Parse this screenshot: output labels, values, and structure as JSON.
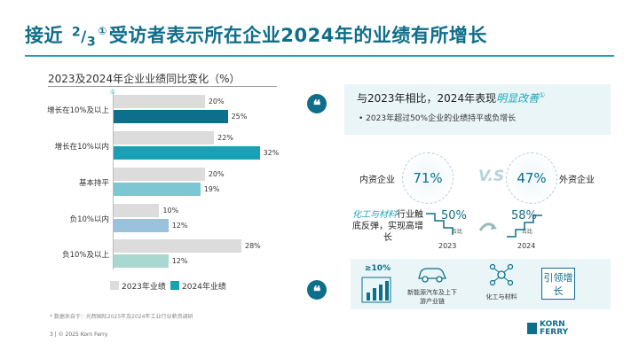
{
  "title": {
    "pre": "接近 ",
    "frac_num": "2",
    "frac_sep": "/",
    "frac_den": "3",
    "note": "①",
    "post": "受访者表示所在企业2024年的业绩有所增长"
  },
  "chart_data": {
    "type": "bar",
    "title": "2023及2024年企业业绩同比变化（%）",
    "note_mark": "①",
    "categories": [
      "增长在10%及以上",
      "增长在10%以内",
      "基本持平",
      "负10%以内",
      "负10%及以上"
    ],
    "series": [
      {
        "name": "2023年业绩",
        "values": [
          20,
          22,
          20,
          10,
          28
        ],
        "labels": [
          "20%",
          "22%",
          "20%",
          "10%",
          "28%"
        ]
      },
      {
        "name": "2024年业绩",
        "values": [
          25,
          32,
          19,
          12,
          12
        ],
        "labels": [
          "25%",
          "32%",
          "19%",
          "12%",
          "12%"
        ]
      }
    ],
    "xlim": [
      0,
      35
    ]
  },
  "colors": {
    "y2023": "#dcdcdc",
    "y2024": [
      "#0d6f8c",
      "#1aa0b5",
      "#7dc7d3",
      "#9ac2dc",
      "#a8d8cf"
    ],
    "accent": "#0f6e8a",
    "highlight": "#1fa7b5"
  },
  "footnote": "* 数据来自于：光辉国际2025年及2024年工业行业薪资调研",
  "footer": "3  |  © 2025 Korn Ferry",
  "panel1": {
    "quote_icon": "❝",
    "head_pre": "与2023年相比，2024年表现",
    "head_hl": "明显改善",
    "head_note": "①",
    "bullet": "•    2023年超过50%企业的业绩持平或负增长"
  },
  "comparison": {
    "domestic_label": "内资企业",
    "domestic_pct": "71%",
    "vs": "V.S",
    "foreign_label": "外资企业",
    "foreign_pct": "47%"
  },
  "growth": {
    "text_hl": "化工与材料",
    "text_rest": "行业触底反弹，实现高增长",
    "y2023_pct": "50%",
    "y2023_sub": "占比",
    "y2023_year": "2023",
    "y2024_pct": "58%",
    "y2024_sub": "占比",
    "y2024_year": "2024"
  },
  "panel2": {
    "quote_icon": "❝",
    "ge": "≥10%",
    "cap_auto": "新能源汽车及上下游产业链",
    "cap_chem": "化工与材料",
    "box": "引领增长"
  },
  "logo": {
    "line1": "KORN",
    "line2": "FERRY"
  }
}
